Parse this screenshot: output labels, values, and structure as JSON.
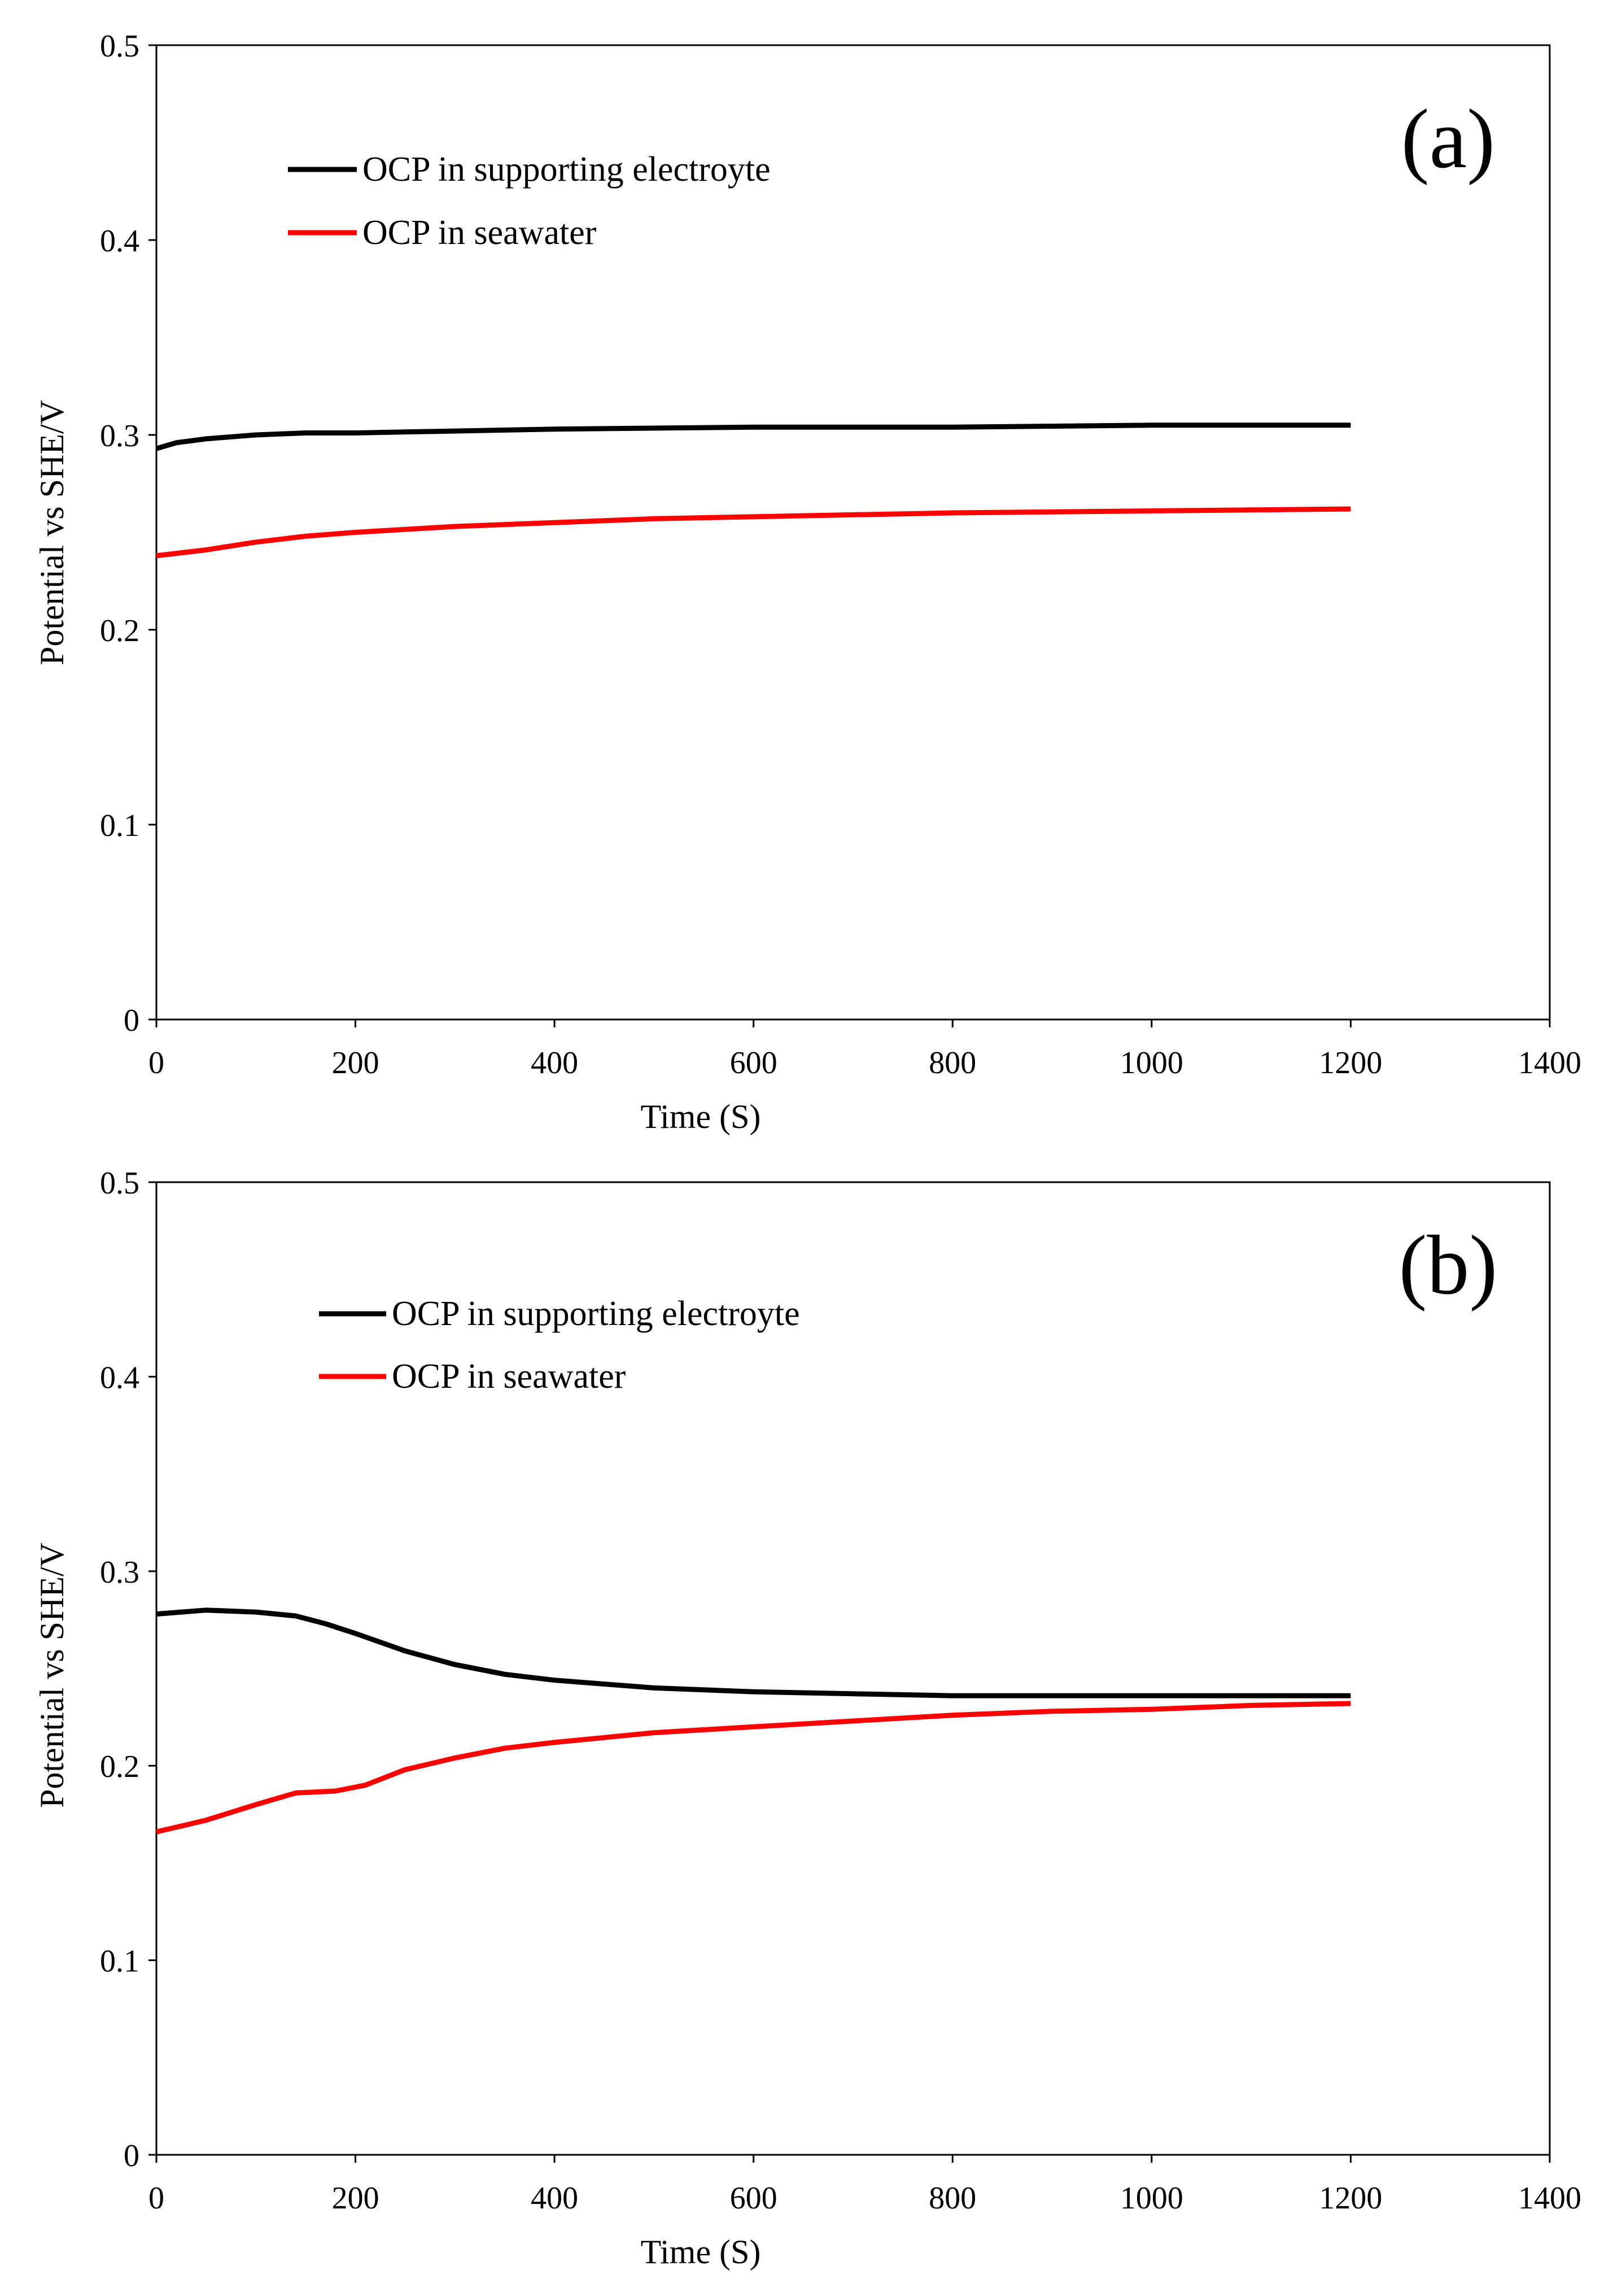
{
  "chart_data": [
    {
      "type": "line",
      "panel_label": "(a)",
      "xlabel": "Time (S)",
      "ylabel": "Potential vs SHE/V",
      "xlim": [
        0,
        1400
      ],
      "ylim": [
        0,
        0.5
      ],
      "xticks": [
        "0",
        "200",
        "400",
        "600",
        "800",
        "1000",
        "1200",
        "1400"
      ],
      "yticks": [
        "0",
        "0.1",
        "0.2",
        "0.3",
        "0.4",
        "0.5"
      ],
      "grid": false,
      "legend_position": "top-left",
      "series": [
        {
          "name": "OCP in supporting electroyte",
          "color": "#000000",
          "x": [
            0,
            20,
            50,
            100,
            150,
            200,
            300,
            400,
            600,
            800,
            1000,
            1200
          ],
          "y": [
            0.293,
            0.296,
            0.298,
            0.3,
            0.301,
            0.301,
            0.302,
            0.303,
            0.304,
            0.304,
            0.305,
            0.305
          ]
        },
        {
          "name": "OCP in seawater",
          "color": "#ff0000",
          "x": [
            0,
            50,
            100,
            150,
            200,
            300,
            400,
            500,
            600,
            800,
            1000,
            1200
          ],
          "y": [
            0.238,
            0.241,
            0.245,
            0.248,
            0.25,
            0.253,
            0.255,
            0.257,
            0.258,
            0.26,
            0.261,
            0.262
          ]
        }
      ]
    },
    {
      "type": "line",
      "panel_label": "(b)",
      "xlabel": "Time (S)",
      "ylabel": "Potential vs SHE/V",
      "xlim": [
        0,
        1400
      ],
      "ylim": [
        0,
        0.5
      ],
      "xticks": [
        "0",
        "200",
        "400",
        "600",
        "800",
        "1000",
        "1200",
        "1400"
      ],
      "yticks": [
        "0",
        "0.1",
        "0.2",
        "0.3",
        "0.4",
        "0.5"
      ],
      "grid": false,
      "legend_position": "top-left",
      "series": [
        {
          "name": "OCP in supporting electroyte",
          "color": "#000000",
          "x": [
            0,
            25,
            50,
            100,
            140,
            170,
            200,
            250,
            300,
            350,
            400,
            500,
            600,
            700,
            800,
            1000,
            1200
          ],
          "y": [
            0.278,
            0.279,
            0.28,
            0.279,
            0.277,
            0.273,
            0.268,
            0.259,
            0.252,
            0.247,
            0.244,
            0.24,
            0.238,
            0.237,
            0.236,
            0.236,
            0.236
          ]
        },
        {
          "name": "OCP in seawater",
          "color": "#ff0000",
          "x": [
            0,
            25,
            50,
            100,
            140,
            180,
            210,
            250,
            300,
            350,
            400,
            500,
            600,
            700,
            800,
            900,
            1000,
            1100,
            1200
          ],
          "y": [
            0.166,
            0.169,
            0.172,
            0.18,
            0.186,
            0.187,
            0.19,
            0.198,
            0.204,
            0.209,
            0.212,
            0.217,
            0.22,
            0.223,
            0.226,
            0.228,
            0.229,
            0.231,
            0.232
          ]
        }
      ]
    }
  ]
}
